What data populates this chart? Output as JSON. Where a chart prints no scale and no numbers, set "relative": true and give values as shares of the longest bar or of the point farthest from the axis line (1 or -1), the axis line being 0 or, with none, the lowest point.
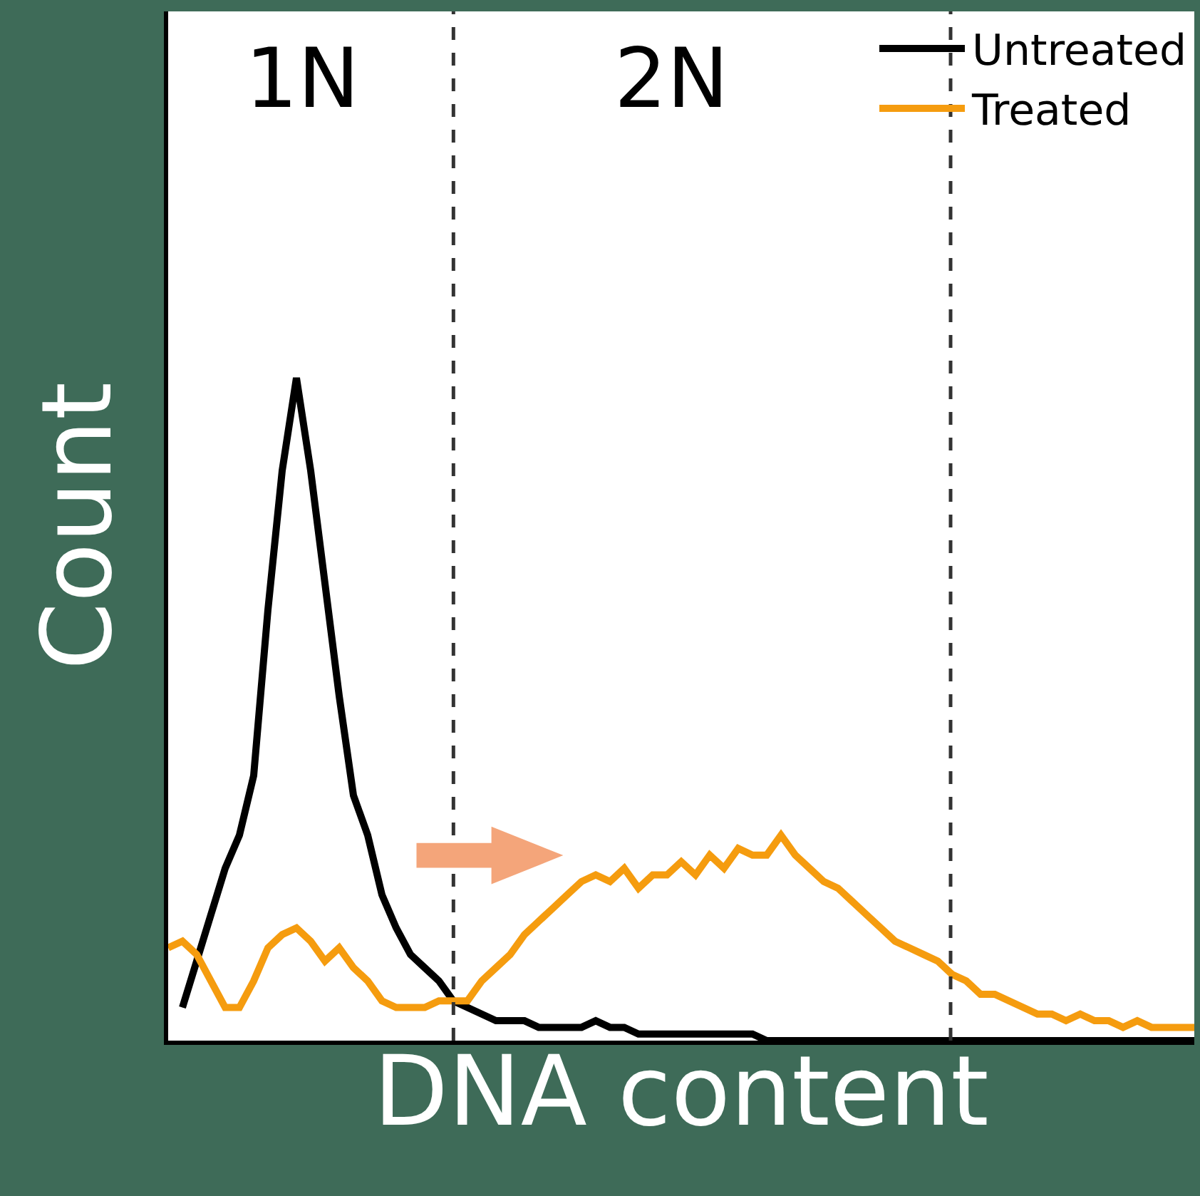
{
  "chart_data": {
    "type": "line",
    "relative": true,
    "xlabel": "DNA content",
    "ylabel": "Count",
    "categories": [
      null,
      null,
      null,
      null,
      null,
      null,
      null,
      null,
      null,
      null,
      null,
      null,
      null,
      null,
      null,
      null,
      null,
      null,
      null,
      null,
      null,
      null,
      null,
      null,
      null,
      null,
      null,
      null,
      null,
      null,
      null,
      null,
      null,
      null,
      null,
      null,
      null,
      null,
      null,
      null,
      null,
      null,
      null,
      null,
      null,
      null,
      null,
      null,
      null,
      null,
      null,
      null,
      null,
      null,
      null,
      null,
      null,
      null,
      null,
      null,
      null,
      null,
      null,
      null,
      null,
      null,
      null,
      null,
      null,
      null,
      null,
      null,
      null
    ],
    "series": [
      {
        "name": "Untreated",
        "color": "#000000",
        "values": [
          null,
          0.05,
          0.12,
          0.19,
          0.26,
          0.31,
          0.4,
          0.65,
          0.86,
          1.0,
          0.86,
          0.69,
          0.52,
          0.37,
          0.31,
          0.22,
          0.17,
          0.13,
          0.11,
          0.09,
          0.06,
          0.05,
          0.04,
          0.03,
          0.03,
          0.03,
          0.02,
          0.02,
          0.02,
          0.02,
          0.03,
          0.02,
          0.02,
          0.01,
          0.01,
          0.01,
          0.01,
          0.01,
          0.01,
          0.01,
          0.01,
          0.01,
          0,
          0,
          0,
          0,
          0,
          0,
          0,
          0,
          0,
          0,
          0,
          0,
          0,
          0,
          0,
          0,
          0,
          0,
          0,
          0,
          0,
          0,
          0,
          0,
          0,
          0,
          0,
          0,
          0,
          0,
          0
        ]
      },
      {
        "name": "Treated",
        "color": "#f59c0f",
        "values": [
          0.14,
          0.15,
          0.13,
          0.09,
          0.05,
          0.05,
          0.09,
          0.14,
          0.16,
          0.17,
          0.15,
          0.12,
          0.14,
          0.11,
          0.09,
          0.06,
          0.05,
          0.05,
          0.05,
          0.06,
          0.06,
          0.06,
          0.09,
          0.11,
          0.13,
          0.16,
          0.18,
          0.2,
          0.22,
          0.24,
          0.25,
          0.24,
          0.26,
          0.23,
          0.25,
          0.25,
          0.27,
          0.25,
          0.28,
          0.26,
          0.29,
          0.28,
          0.28,
          0.31,
          0.28,
          0.26,
          0.24,
          0.23,
          0.21,
          0.19,
          0.17,
          0.15,
          0.14,
          0.13,
          0.12,
          0.1,
          0.09,
          0.07,
          0.07,
          0.06,
          0.05,
          0.04,
          0.04,
          0.03,
          0.04,
          0.03,
          0.03,
          0.02,
          0.03,
          0.02,
          0.02,
          0.02,
          0.02
        ]
      }
    ],
    "annotations": [
      "1N",
      "2N"
    ],
    "legend": "top right",
    "tick_labels": false,
    "line_style": "solid",
    "marker": "none"
  }
}
